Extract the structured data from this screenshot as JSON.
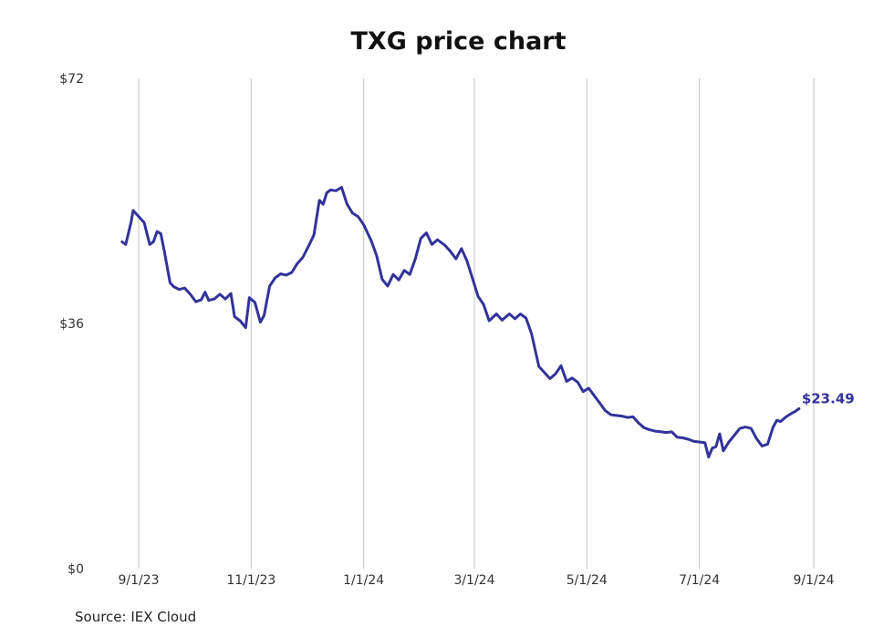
{
  "chart_data": {
    "type": "line",
    "title": "TXG price chart",
    "source": "Source: IEX Cloud",
    "xlabel": "",
    "ylabel": "",
    "ylim": [
      0,
      72
    ],
    "yticks": [
      {
        "value": 0,
        "label": "$0"
      },
      {
        "value": 36,
        "label": "$36"
      },
      {
        "value": 72,
        "label": "$72"
      }
    ],
    "xlim": [
      "2023-08-18",
      "2024-09-01"
    ],
    "xticks": [
      {
        "date": "2023-09-01",
        "label": "9/1/23"
      },
      {
        "date": "2023-11-01",
        "label": "11/1/23"
      },
      {
        "date": "2024-01-01",
        "label": "1/1/24"
      },
      {
        "date": "2024-03-01",
        "label": "3/1/24"
      },
      {
        "date": "2024-05-01",
        "label": "5/1/24"
      },
      {
        "date": "2024-07-01",
        "label": "7/1/24"
      },
      {
        "date": "2024-09-01",
        "label": "9/1/24"
      }
    ],
    "grid": "vertical",
    "line_color": "#33329a",
    "last_value_label": "$23.49",
    "series": [
      {
        "points": [
          [
            "2023-08-23",
            48.0
          ],
          [
            "2023-08-25",
            47.6
          ],
          [
            "2023-08-28",
            51.0
          ],
          [
            "2023-08-29",
            52.6
          ],
          [
            "2023-08-31",
            52.0
          ],
          [
            "2023-09-04",
            50.8
          ],
          [
            "2023-09-07",
            47.6
          ],
          [
            "2023-09-09",
            48.0
          ],
          [
            "2023-09-11",
            49.5
          ],
          [
            "2023-09-13",
            49.2
          ],
          [
            "2023-09-15",
            46.5
          ],
          [
            "2023-09-18",
            42.0
          ],
          [
            "2023-09-20",
            41.4
          ],
          [
            "2023-09-23",
            41.0
          ],
          [
            "2023-09-26",
            41.2
          ],
          [
            "2023-09-29",
            40.3
          ],
          [
            "2023-10-02",
            39.2
          ],
          [
            "2023-10-05",
            39.5
          ],
          [
            "2023-10-07",
            40.6
          ],
          [
            "2023-10-09",
            39.4
          ],
          [
            "2023-10-12",
            39.6
          ],
          [
            "2023-10-15",
            40.3
          ],
          [
            "2023-10-18",
            39.6
          ],
          [
            "2023-10-21",
            40.4
          ],
          [
            "2023-10-23",
            37.0
          ],
          [
            "2023-10-26",
            36.4
          ],
          [
            "2023-10-29",
            35.4
          ],
          [
            "2023-10-31",
            39.8
          ],
          [
            "2023-11-03",
            39.1
          ],
          [
            "2023-11-06",
            36.2
          ],
          [
            "2023-11-08",
            37.2
          ],
          [
            "2023-11-11",
            41.5
          ],
          [
            "2023-11-14",
            42.7
          ],
          [
            "2023-11-17",
            43.3
          ],
          [
            "2023-11-20",
            43.1
          ],
          [
            "2023-11-23",
            43.5
          ],
          [
            "2023-11-26",
            44.8
          ],
          [
            "2023-11-29",
            45.7
          ],
          [
            "2023-12-02",
            47.3
          ],
          [
            "2023-12-05",
            49.0
          ],
          [
            "2023-12-08",
            54.1
          ],
          [
            "2023-12-10",
            53.5
          ],
          [
            "2023-12-12",
            55.2
          ],
          [
            "2023-12-14",
            55.6
          ],
          [
            "2023-12-17",
            55.5
          ],
          [
            "2023-12-20",
            56.0
          ],
          [
            "2023-12-23",
            53.5
          ],
          [
            "2023-12-26",
            52.2
          ],
          [
            "2023-12-29",
            51.7
          ],
          [
            "2024-01-01",
            50.5
          ],
          [
            "2024-01-05",
            48.2
          ],
          [
            "2024-01-08",
            46.0
          ],
          [
            "2024-01-11",
            42.5
          ],
          [
            "2024-01-14",
            41.5
          ],
          [
            "2024-01-17",
            43.2
          ],
          [
            "2024-01-20",
            42.4
          ],
          [
            "2024-01-23",
            43.8
          ],
          [
            "2024-01-26",
            43.2
          ],
          [
            "2024-01-29",
            45.5
          ],
          [
            "2024-02-01",
            48.5
          ],
          [
            "2024-02-04",
            49.3
          ],
          [
            "2024-02-07",
            47.6
          ],
          [
            "2024-02-10",
            48.3
          ],
          [
            "2024-02-14",
            47.5
          ],
          [
            "2024-02-17",
            46.6
          ],
          [
            "2024-02-20",
            45.5
          ],
          [
            "2024-02-23",
            47.0
          ],
          [
            "2024-02-26",
            45.2
          ],
          [
            "2024-02-29",
            42.6
          ],
          [
            "2024-03-03",
            40.0
          ],
          [
            "2024-03-06",
            38.8
          ],
          [
            "2024-03-09",
            36.4
          ],
          [
            "2024-03-13",
            37.4
          ],
          [
            "2024-03-16",
            36.5
          ],
          [
            "2024-03-20",
            37.4
          ],
          [
            "2024-03-23",
            36.7
          ],
          [
            "2024-03-26",
            37.4
          ],
          [
            "2024-03-29",
            36.8
          ],
          [
            "2024-04-01",
            34.5
          ],
          [
            "2024-04-05",
            29.7
          ],
          [
            "2024-04-08",
            28.8
          ],
          [
            "2024-04-11",
            27.9
          ],
          [
            "2024-04-14",
            28.6
          ],
          [
            "2024-04-17",
            29.8
          ],
          [
            "2024-04-20",
            27.5
          ],
          [
            "2024-04-23",
            28.0
          ],
          [
            "2024-04-26",
            27.4
          ],
          [
            "2024-04-29",
            26.0
          ],
          [
            "2024-05-02",
            26.5
          ],
          [
            "2024-05-05",
            25.4
          ],
          [
            "2024-05-08",
            24.3
          ],
          [
            "2024-05-11",
            23.2
          ],
          [
            "2024-05-14",
            22.6
          ],
          [
            "2024-05-17",
            22.5
          ],
          [
            "2024-05-20",
            22.4
          ],
          [
            "2024-05-23",
            22.2
          ],
          [
            "2024-05-26",
            22.3
          ],
          [
            "2024-05-29",
            21.4
          ],
          [
            "2024-06-01",
            20.7
          ],
          [
            "2024-06-04",
            20.4
          ],
          [
            "2024-06-07",
            20.2
          ],
          [
            "2024-06-10",
            20.1
          ],
          [
            "2024-06-13",
            20.0
          ],
          [
            "2024-06-16",
            20.1
          ],
          [
            "2024-06-19",
            19.3
          ],
          [
            "2024-06-22",
            19.2
          ],
          [
            "2024-06-25",
            19.0
          ],
          [
            "2024-06-28",
            18.7
          ],
          [
            "2024-07-01",
            18.6
          ],
          [
            "2024-07-04",
            18.5
          ],
          [
            "2024-07-06",
            16.4
          ],
          [
            "2024-07-08",
            17.7
          ],
          [
            "2024-07-10",
            17.9
          ],
          [
            "2024-07-12",
            19.8
          ],
          [
            "2024-07-14",
            17.3
          ],
          [
            "2024-07-17",
            18.6
          ],
          [
            "2024-07-20",
            19.6
          ],
          [
            "2024-07-23",
            20.6
          ],
          [
            "2024-07-26",
            20.8
          ],
          [
            "2024-07-29",
            20.6
          ],
          [
            "2024-08-01",
            19.1
          ],
          [
            "2024-08-04",
            18.0
          ],
          [
            "2024-08-07",
            18.3
          ],
          [
            "2024-08-10",
            20.8
          ],
          [
            "2024-08-12",
            21.8
          ],
          [
            "2024-08-14",
            21.6
          ],
          [
            "2024-08-17",
            22.3
          ],
          [
            "2024-08-20",
            22.8
          ],
          [
            "2024-08-22",
            23.1
          ],
          [
            "2024-08-24",
            23.49
          ]
        ]
      }
    ]
  }
}
